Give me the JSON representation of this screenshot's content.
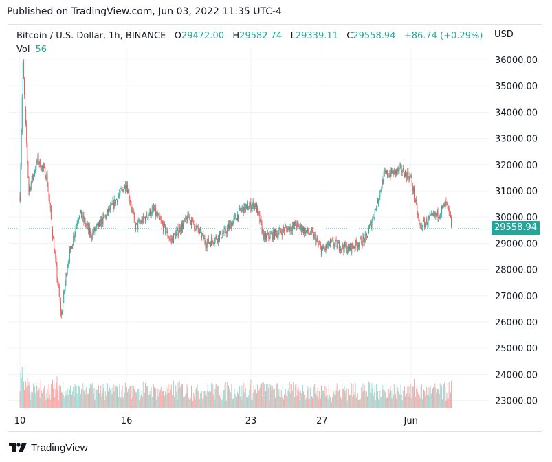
{
  "header": {
    "published": "Published on TradingView.com, Jun 03, 2022 11:35 UTC-4"
  },
  "legend": {
    "symbol": "Bitcoin / U.S. Dollar, 1h, BINANCE",
    "open_label": "O",
    "open": "29472.00",
    "high_label": "H",
    "high": "29582.74",
    "low_label": "L",
    "low": "29339.11",
    "close_label": "C",
    "close": "29558.94",
    "change": "+86.74 (+0.29%)",
    "vol_label": "Vol",
    "vol": "56"
  },
  "axis": {
    "currency": "USD",
    "last_price": "29558.94"
  },
  "footer": {
    "brand": "TradingView",
    "logo_icon": "tradingview-logo-icon"
  },
  "colors": {
    "up": "#26a69a",
    "down": "#ef5350",
    "up_vol": "#9fd9d3",
    "down_vol": "#f7a9a7"
  },
  "chart_data": {
    "type": "candlestick",
    "ylim": [
      22400,
      36500
    ],
    "y_ticks": [
      36000,
      35000,
      34000,
      33000,
      32000,
      31000,
      30000,
      29000,
      28000,
      27000,
      26000,
      25000,
      24000,
      23000
    ],
    "y_tick_labels": [
      "36000.00",
      "35000.00",
      "34000.00",
      "33000.00",
      "32000.00",
      "31000.00",
      "30000.00",
      "29000.00",
      "28000.00",
      "27000.00",
      "26000.00",
      "25000.00",
      "24000.00",
      "23000.00"
    ],
    "x_labels": [
      "10",
      "16",
      "23",
      "27",
      "Jun"
    ],
    "x_label_dates": [
      "2022-05-10",
      "2022-05-16",
      "2022-05-23",
      "2022-05-27",
      "2022-06-01"
    ],
    "date_range": [
      "2022-05-10",
      "2022-06-03"
    ],
    "last_price": 29558.94,
    "series_keypoints": [
      {
        "t": "2022-05-10T00:00",
        "price": 30800
      },
      {
        "t": "2022-05-10T04:00",
        "price": 35800
      },
      {
        "t": "2022-05-10T12:00",
        "price": 31000
      },
      {
        "t": "2022-05-11T00:00",
        "price": 32200
      },
      {
        "t": "2022-05-11T12:00",
        "price": 31600
      },
      {
        "t": "2022-05-12T00:00",
        "price": 28300
      },
      {
        "t": "2022-05-12T08:00",
        "price": 26200
      },
      {
        "t": "2022-05-12T16:00",
        "price": 28200
      },
      {
        "t": "2022-05-13T08:00",
        "price": 30200
      },
      {
        "t": "2022-05-14T00:00",
        "price": 29300
      },
      {
        "t": "2022-05-15T00:00",
        "price": 30200
      },
      {
        "t": "2022-05-16T00:00",
        "price": 31300
      },
      {
        "t": "2022-05-16T12:00",
        "price": 29600
      },
      {
        "t": "2022-05-17T12:00",
        "price": 30300
      },
      {
        "t": "2022-05-18T12:00",
        "price": 29100
      },
      {
        "t": "2022-05-19T12:00",
        "price": 30000
      },
      {
        "t": "2022-05-20T12:00",
        "price": 29000
      },
      {
        "t": "2022-05-21T12:00",
        "price": 29400
      },
      {
        "t": "2022-05-22T12:00",
        "price": 30300
      },
      {
        "t": "2022-05-23T06:00",
        "price": 30500
      },
      {
        "t": "2022-05-23T18:00",
        "price": 29200
      },
      {
        "t": "2022-05-24T12:00",
        "price": 29400
      },
      {
        "t": "2022-05-25T12:00",
        "price": 29700
      },
      {
        "t": "2022-05-26T12:00",
        "price": 29300
      },
      {
        "t": "2022-05-27T00:00",
        "price": 28700
      },
      {
        "t": "2022-05-27T12:00",
        "price": 29000
      },
      {
        "t": "2022-05-28T12:00",
        "price": 28800
      },
      {
        "t": "2022-05-29T12:00",
        "price": 29200
      },
      {
        "t": "2022-05-30T00:00",
        "price": 30300
      },
      {
        "t": "2022-05-30T12:00",
        "price": 31600
      },
      {
        "t": "2022-05-31T12:00",
        "price": 31800
      },
      {
        "t": "2022-06-01T00:00",
        "price": 31500
      },
      {
        "t": "2022-06-01T12:00",
        "price": 29600
      },
      {
        "t": "2022-06-02T00:00",
        "price": 29900
      },
      {
        "t": "2022-06-02T12:00",
        "price": 30100
      },
      {
        "t": "2022-06-03T00:00",
        "price": 30500
      },
      {
        "t": "2022-06-03T08:00",
        "price": 29559
      }
    ]
  }
}
